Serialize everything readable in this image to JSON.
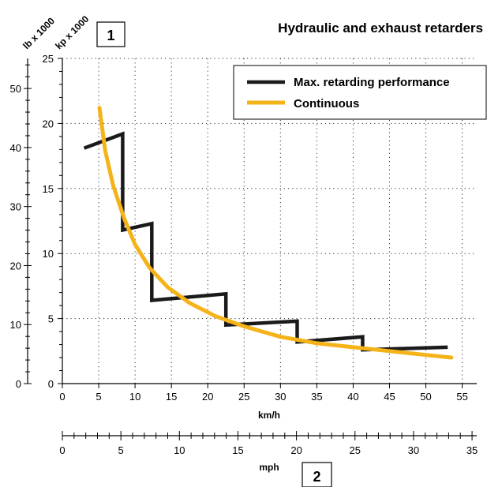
{
  "chart_data": {
    "type": "line",
    "title": "Hydraulic and exhaust retarders",
    "x_label": "km/h",
    "x_ticks": [
      0,
      5,
      10,
      15,
      20,
      25,
      30,
      35,
      40,
      45,
      50,
      55
    ],
    "xlim": [
      0,
      57
    ],
    "y_kp_label": "kp x 1000",
    "y_kp_ticks": [
      0,
      5,
      10,
      15,
      20,
      25
    ],
    "ylim_kp": [
      0,
      25
    ],
    "y_lb_label": "lb x 1000",
    "y_lb_ticks": [
      0,
      10,
      20,
      30,
      40,
      50
    ],
    "ylim_lb": [
      0,
      55.1
    ],
    "mph_label": "mph",
    "mph_ticks": [
      0,
      5,
      10,
      15,
      20,
      25,
      30,
      35
    ],
    "mph_lim": [
      0,
      35.4
    ],
    "grid": true,
    "legend_position": "top-right",
    "series": [
      {
        "name": "Max. retarding performance",
        "color": "#1a1a1a",
        "x": [
          3,
          8.3,
          8.3,
          12.3,
          12.3,
          22.5,
          22.5,
          32.3,
          32.3,
          41.3,
          41.3,
          53
        ],
        "y": [
          18.1,
          19.2,
          11.8,
          12.3,
          6.4,
          6.9,
          4.5,
          4.8,
          3.2,
          3.6,
          2.6,
          2.8
        ]
      },
      {
        "name": "Continuous",
        "color": "#f5b31a",
        "x": [
          5.1,
          5.9,
          7,
          8.5,
          10,
          12,
          14.5,
          17.5,
          21,
          25,
          30,
          35,
          40,
          45,
          50,
          53.5
        ],
        "y": [
          21.2,
          17.9,
          15.2,
          12.7,
          10.7,
          8.9,
          7.4,
          6.2,
          5.2,
          4.4,
          3.6,
          3.1,
          2.8,
          2.5,
          2.2,
          2.0
        ]
      }
    ]
  },
  "callouts": {
    "box1": "1",
    "box2": "2"
  }
}
